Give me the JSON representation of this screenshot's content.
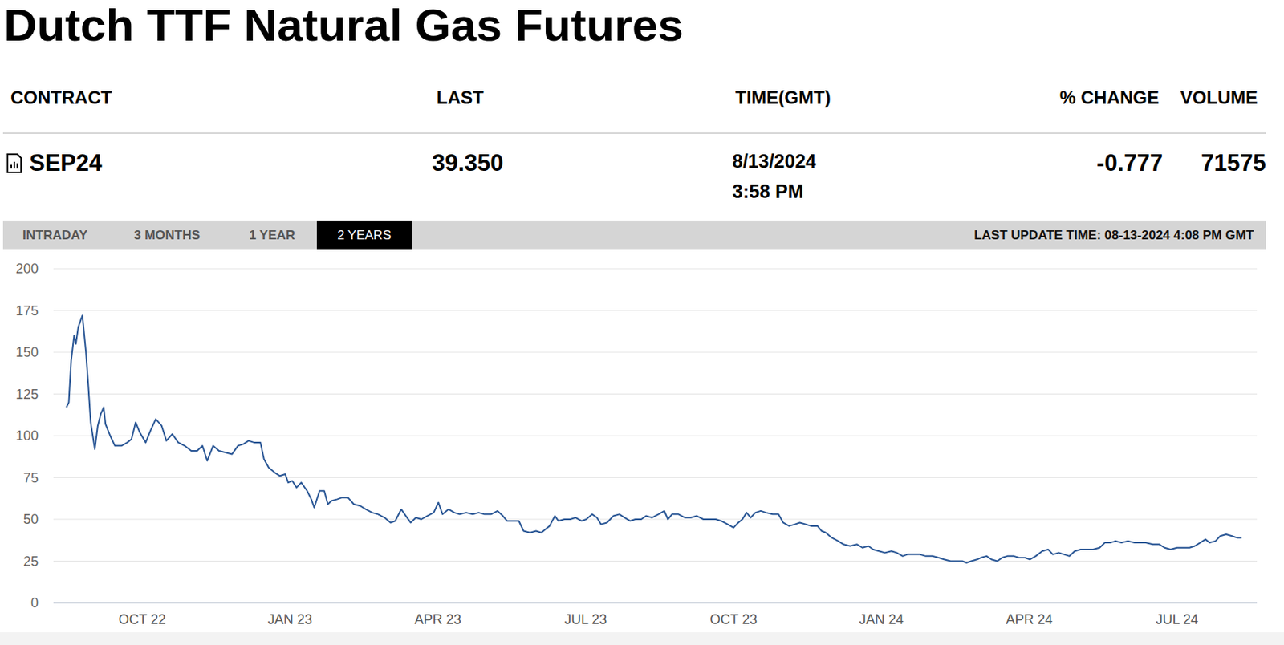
{
  "header": {
    "title": "Dutch TTF Natural Gas Futures"
  },
  "table": {
    "columns": [
      "CONTRACT",
      "LAST",
      "TIME(GMT)",
      "% CHANGE",
      "VOLUME"
    ],
    "rows": [
      [
        "SEP24",
        "39.350",
        [
          "8/13/2024",
          "3:58 PM"
        ],
        "-0.777",
        "71575"
      ]
    ]
  },
  "tabs": [
    {
      "label": "INTRADAY",
      "selected": false
    },
    {
      "label": "3 MONTHS",
      "selected": false
    },
    {
      "label": "1 YEAR",
      "selected": false
    },
    {
      "label": "2 YEARS",
      "selected": true
    }
  ],
  "last_update": "LAST UPDATE TIME: 08-13-2024 4:08 PM GMT",
  "chart_data": {
    "type": "line",
    "color": "#2c5896",
    "grid": true,
    "xlim": [
      2022.6,
      2024.635
    ],
    "xticks": [
      {
        "value": 2022.75,
        "label": "OCT 22"
      },
      {
        "value": 2023.0,
        "label": "JAN 23"
      },
      {
        "value": 2023.25,
        "label": "APR 23"
      },
      {
        "value": 2023.5,
        "label": "JUL 23"
      },
      {
        "value": 2023.75,
        "label": "OCT 23"
      },
      {
        "value": 2024.0,
        "label": "JAN 24"
      },
      {
        "value": 2024.25,
        "label": "APR 24"
      },
      {
        "value": 2024.5,
        "label": "JUL 24"
      }
    ],
    "ylim": [
      0,
      200
    ],
    "yticks": [
      0,
      25,
      50,
      75,
      100,
      125,
      150,
      175,
      200
    ],
    "x": [
      2022.622,
      2022.626,
      2022.63,
      2022.635,
      2022.638,
      2022.642,
      2022.649,
      2022.655,
      2022.659,
      2022.663,
      2022.67,
      2022.675,
      2022.68,
      2022.685,
      2022.688,
      2022.696,
      2022.704,
      2022.715,
      2022.725,
      2022.732,
      2022.739,
      2022.746,
      2022.756,
      2022.764,
      2022.773,
      2022.783,
      2022.791,
      2022.801,
      2022.811,
      2022.822,
      2022.833,
      2022.843,
      2022.852,
      2022.86,
      2022.87,
      2022.88,
      2022.891,
      2022.902,
      2022.912,
      2022.921,
      2022.93,
      2022.939,
      2022.95,
      2022.956,
      2022.964,
      2022.974,
      2022.983,
      2022.992,
      2022.997,
      2023.004,
      2023.011,
      2023.019,
      2023.029,
      2023.036,
      2023.041,
      2023.05,
      2023.058,
      2023.064,
      2023.07,
      2023.08,
      2023.088,
      2023.098,
      2023.108,
      2023.119,
      2023.128,
      2023.139,
      2023.149,
      2023.16,
      2023.17,
      2023.178,
      2023.188,
      2023.196,
      2023.204,
      2023.213,
      2023.222,
      2023.232,
      2023.243,
      2023.251,
      2023.258,
      2023.268,
      2023.278,
      2023.287,
      2023.298,
      2023.309,
      2023.319,
      2023.329,
      2023.34,
      2023.351,
      2023.36,
      2023.367,
      2023.377,
      2023.387,
      2023.395,
      2023.406,
      2023.416,
      2023.425,
      2023.432,
      2023.439,
      2023.448,
      2023.454,
      2023.464,
      2023.474,
      2023.483,
      2023.493,
      2023.501,
      2023.511,
      2023.519,
      2023.526,
      2023.536,
      2023.547,
      2023.557,
      2023.566,
      2023.575,
      2023.584,
      2023.594,
      2023.602,
      2023.612,
      2023.623,
      2023.633,
      2023.639,
      2023.646,
      2023.657,
      2023.668,
      2023.678,
      2023.688,
      2023.699,
      2023.71,
      2023.72,
      2023.729,
      2023.74,
      2023.75,
      2023.758,
      2023.765,
      2023.772,
      2023.779,
      2023.787,
      2023.796,
      2023.805,
      2023.816,
      2023.826,
      2023.834,
      2023.844,
      2023.854,
      2023.862,
      2023.872,
      2023.881,
      2023.892,
      2023.899,
      2023.906,
      2023.916,
      2023.927,
      2023.936,
      2023.947,
      2023.959,
      2023.968,
      2023.978,
      2023.986,
      2023.996,
      2024.006,
      2024.017,
      2024.026,
      2024.036,
      2024.044,
      2024.055,
      2024.065,
      2024.075,
      2024.086,
      2024.097,
      2024.106,
      2024.117,
      2024.127,
      2024.137,
      2024.144,
      2024.152,
      2024.162,
      2024.168,
      2024.178,
      2024.186,
      2024.196,
      2024.204,
      2024.213,
      2024.224,
      2024.233,
      2024.243,
      2024.251,
      2024.261,
      2024.272,
      2024.282,
      2024.29,
      2024.3,
      2024.309,
      2024.318,
      2024.327,
      2024.337,
      2024.348,
      2024.358,
      2024.369,
      2024.378,
      2024.387,
      2024.396,
      2024.406,
      2024.417,
      2024.428,
      2024.438,
      2024.447,
      2024.459,
      2024.47,
      2024.479,
      2024.489,
      2024.5,
      2024.511,
      2024.521,
      2024.53,
      2024.539,
      2024.548,
      2024.555,
      2024.565,
      2024.573,
      2024.583,
      2024.593,
      2024.601,
      2024.609
    ],
    "values": [
      117,
      120,
      145,
      160,
      155,
      165,
      172,
      150,
      130,
      108,
      92,
      106,
      113,
      117,
      107,
      100,
      94,
      94,
      96,
      98,
      108,
      102,
      96,
      103,
      110,
      106,
      97,
      101,
      96,
      94,
      91,
      91,
      94,
      85,
      94,
      91,
      90,
      89,
      94,
      95,
      97,
      96,
      96,
      86,
      81,
      78,
      76,
      77,
      72,
      73,
      69,
      72,
      67,
      62,
      57,
      67,
      67,
      59,
      61,
      62,
      63,
      63,
      59,
      58,
      56,
      54,
      53,
      51,
      48,
      49,
      56,
      52,
      48,
      51,
      50,
      52,
      54,
      60,
      53,
      56,
      54,
      53,
      54,
      53,
      54,
      53,
      53,
      55,
      52,
      49,
      49,
      49,
      43,
      42,
      43,
      42,
      44,
      46,
      52,
      49,
      50,
      50,
      51,
      49,
      50,
      53,
      51,
      47,
      48,
      52,
      53,
      51,
      49,
      50,
      50,
      52,
      51,
      53,
      55,
      50,
      53,
      53,
      51,
      51,
      52,
      50,
      50,
      50,
      49,
      47,
      45,
      48,
      50,
      54,
      51,
      54,
      55,
      54,
      53,
      53,
      48,
      46,
      47,
      48,
      47,
      46,
      46,
      43,
      42,
      39,
      37,
      35,
      34,
      35,
      33,
      34,
      32,
      31,
      30,
      31,
      30,
      28,
      29,
      29,
      29,
      28,
      28,
      27,
      26,
      25,
      25,
      25,
      24,
      25,
      26,
      27,
      28,
      26,
      25,
      27,
      28,
      28,
      27,
      27,
      26,
      28,
      31,
      32,
      29,
      30,
      29,
      28,
      31,
      32,
      32,
      32,
      33,
      36,
      36,
      37,
      36,
      37,
      36,
      36,
      36,
      35,
      35,
      33,
      32,
      33,
      33,
      33,
      34,
      36,
      38,
      36,
      37,
      40,
      41,
      40,
      39,
      39
    ]
  }
}
